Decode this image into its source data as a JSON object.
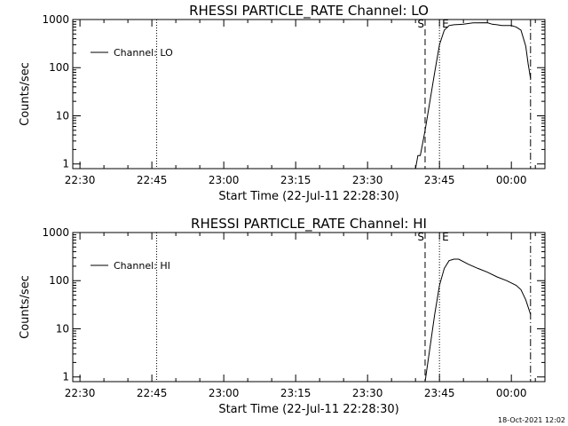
{
  "chart_data": [
    {
      "type": "line",
      "title": "RHESSI PARTICLE_RATE Channel: LO",
      "xlabel": "Start Time (22-Jul-11 22:28:30)",
      "ylabel": "Counts/sec",
      "y_scale": "log",
      "ylim": [
        0.8,
        1000
      ],
      "xlim": [
        "22:28:30",
        "00:07:00"
      ],
      "x_tick_labels": [
        "22:30",
        "22:45",
        "23:00",
        "23:15",
        "23:30",
        "23:45",
        "00:00"
      ],
      "y_tick_labels": [
        "1",
        "10",
        "100",
        "1000"
      ],
      "legend": {
        "placement": "top-left",
        "entries": [
          "Channel: LO"
        ]
      },
      "markers": [
        {
          "time": "22:46",
          "style": "dotted"
        },
        {
          "label": "S",
          "time": "23:42",
          "style": "dashed"
        },
        {
          "label": "E",
          "time": "23:45",
          "style": "dotted"
        },
        {
          "time": "00:04",
          "style": "dash-dot"
        }
      ],
      "series": [
        {
          "name": "Channel: LO",
          "x": [
            "23:40:00",
            "23:40:30",
            "23:41:00",
            "23:42:00",
            "23:42:30",
            "23:43:00",
            "23:43:30",
            "23:44:00",
            "23:45:00",
            "23:46:00",
            "23:47:00",
            "23:48:00",
            "23:49:00",
            "23:50:00",
            "23:52:00",
            "23:55:00",
            "23:56:00",
            "23:57:00",
            "23:58:00",
            "00:00:00",
            "00:01:00",
            "00:02:00",
            "00:03:00",
            "00:03:30",
            "00:04:00"
          ],
          "values": [
            0.8,
            1.5,
            1.5,
            5,
            10,
            20,
            40,
            80,
            300,
            600,
            750,
            780,
            790,
            800,
            850,
            860,
            800,
            780,
            750,
            750,
            700,
            600,
            280,
            120,
            60
          ]
        }
      ]
    },
    {
      "type": "line",
      "title": "RHESSI PARTICLE_RATE Channel: HI",
      "xlabel": "Start Time (22-Jul-11 22:28:30)",
      "ylabel": "Counts/sec",
      "y_scale": "log",
      "ylim": [
        0.8,
        1000
      ],
      "xlim": [
        "22:28:30",
        "00:07:00"
      ],
      "x_tick_labels": [
        "22:30",
        "22:45",
        "23:00",
        "23:15",
        "23:30",
        "23:45",
        "00:00"
      ],
      "y_tick_labels": [
        "1",
        "10",
        "100",
        "1000"
      ],
      "legend": {
        "placement": "top-left",
        "entries": [
          "Channel: HI"
        ]
      },
      "markers": [
        {
          "time": "22:46",
          "style": "dotted"
        },
        {
          "label": "S",
          "time": "23:42",
          "style": "dashed"
        },
        {
          "label": "E",
          "time": "23:45",
          "style": "dotted"
        },
        {
          "time": "00:04",
          "style": "dash-dot"
        }
      ],
      "series": [
        {
          "name": "Channel: HI",
          "x": [
            "23:42:00",
            "23:43:00",
            "23:44:00",
            "23:45:00",
            "23:46:00",
            "23:47:00",
            "23:48:00",
            "23:49:00",
            "23:51:00",
            "23:53:00",
            "23:55:00",
            "23:57:00",
            "23:59:00",
            "00:01:00",
            "00:02:00",
            "00:03:00",
            "00:04:00"
          ],
          "values": [
            0.8,
            4,
            20,
            80,
            180,
            260,
            280,
            280,
            220,
            180,
            150,
            120,
            100,
            80,
            65,
            40,
            20
          ]
        }
      ]
    }
  ],
  "footer": {
    "timestamp": "18-Oct-2021 12:02"
  }
}
